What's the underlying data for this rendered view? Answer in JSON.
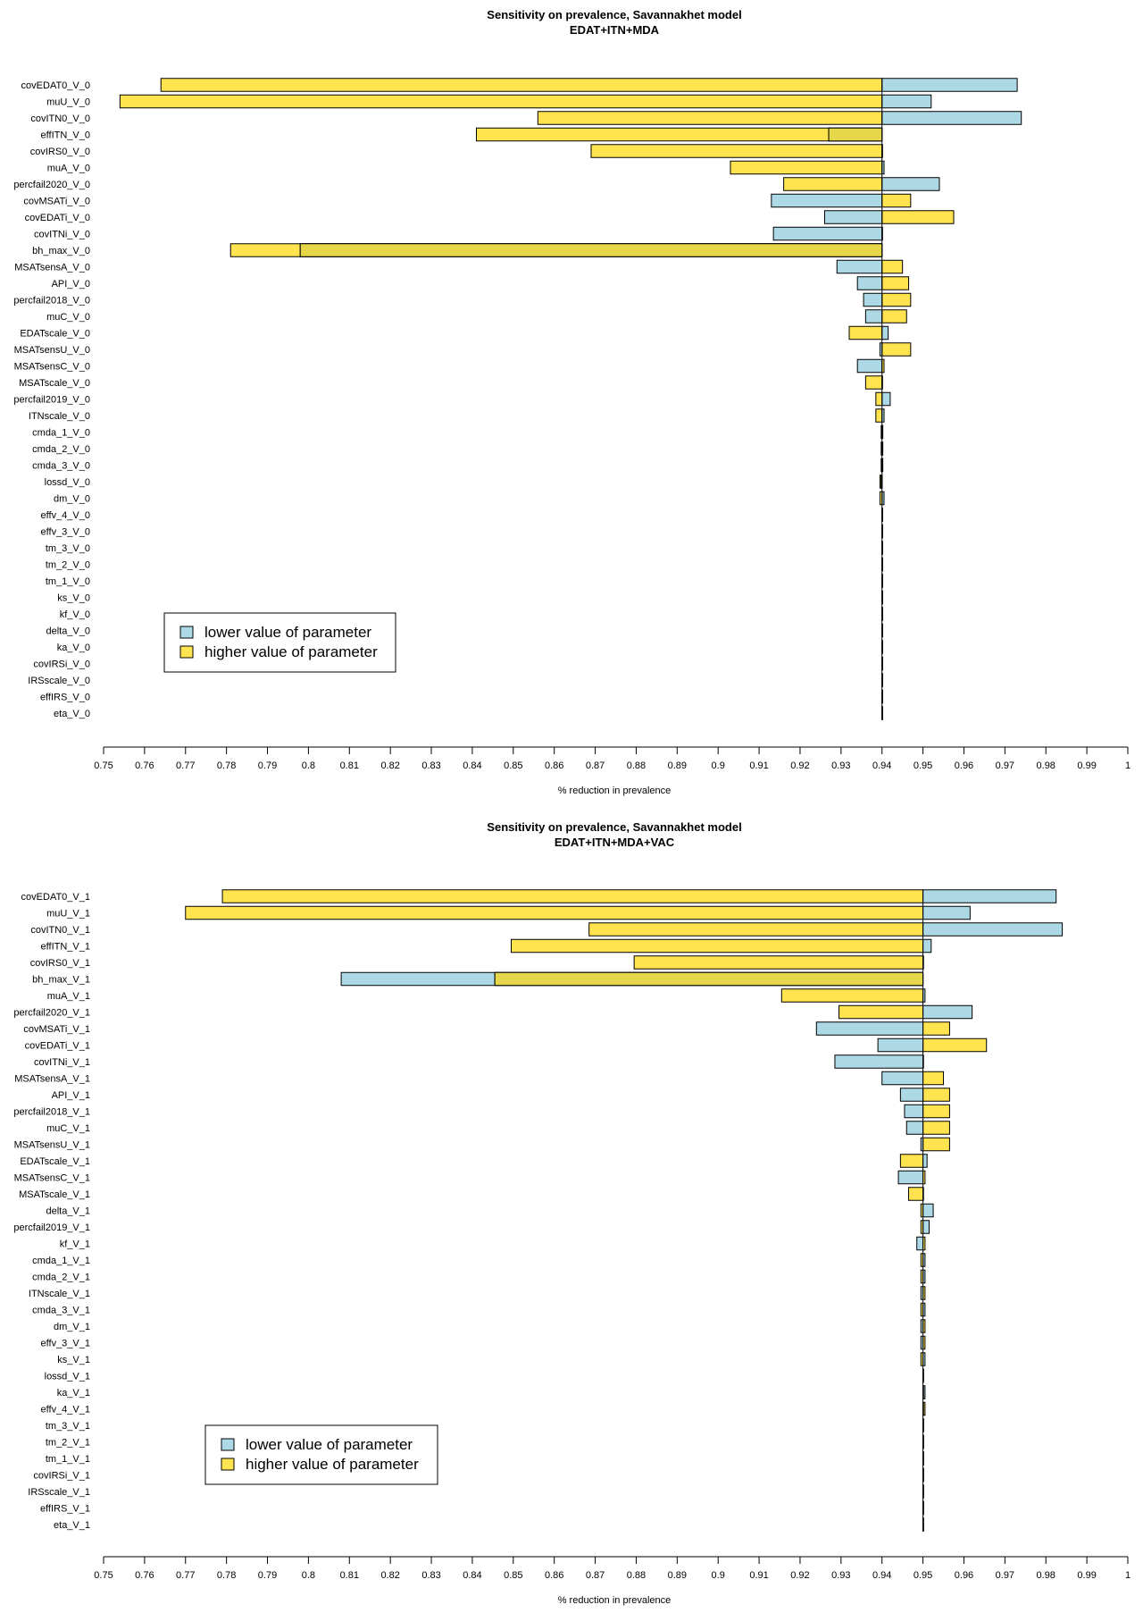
{
  "palette": {
    "lower": "#add8e6",
    "higher": "#ffe34f",
    "overlap": "#e5d64a",
    "stroke": "#000000"
  },
  "chart_data": [
    {
      "type": "bar",
      "orientation": "horizontal",
      "title": "Sensitivity on prevalence, Savannakhet model",
      "subtitle": "EDAT+ITN+MDA",
      "xlabel": "% reduction in prevalence",
      "xlim": [
        0.75,
        1.0
      ],
      "xticks": [
        0.75,
        0.76,
        0.77,
        0.78,
        0.79,
        0.8,
        0.81,
        0.82,
        0.83,
        0.84,
        0.85,
        0.86,
        0.87,
        0.88,
        0.89,
        0.9,
        0.91,
        0.92,
        0.93,
        0.94,
        0.95,
        0.96,
        0.97,
        0.98,
        0.99,
        1
      ],
      "xtick_labels": [
        "0.75",
        "0.76",
        "0.77",
        "0.78",
        "0.79",
        "0.8",
        "0.81",
        "0.82",
        "0.83",
        "0.84",
        "0.85",
        "0.86",
        "0.87",
        "0.88",
        "0.89",
        "0.9",
        "0.91",
        "0.92",
        "0.93",
        "0.94",
        "0.95",
        "0.96",
        "0.97",
        "0.98",
        "0.99",
        "1"
      ],
      "baseline": 0.94,
      "legend": {
        "position": "bottom-left",
        "entries": [
          "lower value of parameter",
          "higher value of parameter"
        ]
      },
      "series": [
        {
          "name": "lower value of parameter",
          "key": "lower"
        },
        {
          "name": "higher value of parameter",
          "key": "higher"
        }
      ],
      "categories": [
        "covEDAT0_V_0",
        "muU_V_0",
        "covITN0_V_0",
        "effITN_V_0",
        "covIRS0_V_0",
        "muA_V_0",
        "percfail2020_V_0",
        "covMSATi_V_0",
        "covEDATi_V_0",
        "covITNi_V_0",
        "bh_max_V_0",
        "MSATsensA_V_0",
        "API_V_0",
        "percfail2018_V_0",
        "muC_V_0",
        "EDATscale_V_0",
        "MSATsensU_V_0",
        "MSATsensC_V_0",
        "MSATscale_V_0",
        "percfail2019_V_0",
        "ITNscale_V_0",
        "cmda_1_V_0",
        "cmda_2_V_0",
        "cmda_3_V_0",
        "lossd_V_0",
        "dm_V_0",
        "effv_4_V_0",
        "effv_3_V_0",
        "tm_3_V_0",
        "tm_2_V_0",
        "tm_1_V_0",
        "ks_V_0",
        "kf_V_0",
        "delta_V_0",
        "ka_V_0",
        "covIRSi_V_0",
        "IRSscale_V_0",
        "effIRS_V_0",
        "eta_V_0"
      ],
      "lower": [
        0.973,
        0.952,
        0.974,
        0.927,
        0.94,
        0.9405,
        0.954,
        0.913,
        0.926,
        0.9135,
        0.798,
        0.929,
        0.934,
        0.9355,
        0.936,
        0.9415,
        0.9395,
        0.934,
        0.94,
        0.942,
        0.9405,
        0.9402,
        0.9402,
        0.9402,
        0.9398,
        0.9405,
        0.94,
        0.94,
        0.94,
        0.94,
        0.94,
        0.94,
        0.94,
        0.94,
        0.94,
        0.94,
        0.94,
        0.94,
        0.94
      ],
      "higher": [
        0.764,
        0.754,
        0.856,
        0.841,
        0.869,
        0.903,
        0.916,
        0.947,
        0.9575,
        0.94,
        0.781,
        0.945,
        0.9465,
        0.947,
        0.946,
        0.932,
        0.947,
        0.9405,
        0.936,
        0.9385,
        0.9385,
        0.9398,
        0.9398,
        0.9398,
        0.9395,
        0.9395,
        0.94,
        0.94,
        0.94,
        0.94,
        0.94,
        0.94,
        0.94,
        0.94,
        0.94,
        0.94,
        0.94,
        0.94,
        0.94
      ]
    },
    {
      "type": "bar",
      "orientation": "horizontal",
      "title": "Sensitivity on prevalence, Savannakhet model",
      "subtitle": "EDAT+ITN+MDA+VAC",
      "xlabel": "% reduction in prevalence",
      "xlim": [
        0.75,
        1.0
      ],
      "xticks": [
        0.75,
        0.76,
        0.77,
        0.78,
        0.79,
        0.8,
        0.81,
        0.82,
        0.83,
        0.84,
        0.85,
        0.86,
        0.87,
        0.88,
        0.89,
        0.9,
        0.91,
        0.92,
        0.93,
        0.94,
        0.95,
        0.96,
        0.97,
        0.98,
        0.99,
        1
      ],
      "xtick_labels": [
        "0.75",
        "0.76",
        "0.77",
        "0.78",
        "0.79",
        "0.8",
        "0.81",
        "0.82",
        "0.83",
        "0.84",
        "0.85",
        "0.86",
        "0.87",
        "0.88",
        "0.89",
        "0.9",
        "0.91",
        "0.92",
        "0.93",
        "0.94",
        "0.95",
        "0.96",
        "0.97",
        "0.98",
        "0.99",
        "1"
      ],
      "baseline": 0.95,
      "legend": {
        "position": "bottom-left",
        "entries": [
          "lower value of parameter",
          "higher value of parameter"
        ]
      },
      "series": [
        {
          "name": "lower value of parameter",
          "key": "lower"
        },
        {
          "name": "higher value of parameter",
          "key": "higher"
        }
      ],
      "categories": [
        "covEDAT0_V_1",
        "muU_V_1",
        "covITN0_V_1",
        "effITN_V_1",
        "covIRS0_V_1",
        "bh_max_V_1",
        "muA_V_1",
        "percfail2020_V_1",
        "covMSATi_V_1",
        "covEDATi_V_1",
        "covITNi_V_1",
        "MSATsensA_V_1",
        "API_V_1",
        "percfail2018_V_1",
        "muC_V_1",
        "MSATsensU_V_1",
        "EDATscale_V_1",
        "MSATsensC_V_1",
        "MSATscale_V_1",
        "delta_V_1",
        "percfail2019_V_1",
        "kf_V_1",
        "cmda_1_V_1",
        "cmda_2_V_1",
        "ITNscale_V_1",
        "cmda_3_V_1",
        "dm_V_1",
        "effv_3_V_1",
        "ks_V_1",
        "lossd_V_1",
        "ka_V_1",
        "effv_4_V_1",
        "tm_3_V_1",
        "tm_2_V_1",
        "tm_1_V_1",
        "covIRSi_V_1",
        "IRSscale_V_1",
        "effIRS_V_1",
        "eta_V_1"
      ],
      "lower": [
        0.9825,
        0.9615,
        0.984,
        0.952,
        0.95,
        0.808,
        0.9505,
        0.962,
        0.924,
        0.939,
        0.9285,
        0.94,
        0.9445,
        0.9455,
        0.946,
        0.9495,
        0.951,
        0.944,
        0.95,
        0.9525,
        0.9515,
        0.9485,
        0.9505,
        0.9505,
        0.9495,
        0.9505,
        0.9495,
        0.9495,
        0.9505,
        0.95,
        0.9505,
        0.95,
        0.95,
        0.95,
        0.95,
        0.95,
        0.95,
        0.95,
        0.95
      ],
      "higher": [
        0.779,
        0.77,
        0.8685,
        0.8495,
        0.8795,
        0.8455,
        0.9155,
        0.9295,
        0.9565,
        0.9655,
        0.95,
        0.955,
        0.9565,
        0.9565,
        0.9565,
        0.9565,
        0.9445,
        0.9505,
        0.9465,
        0.9495,
        0.9495,
        0.9505,
        0.9495,
        0.9495,
        0.9505,
        0.9495,
        0.9505,
        0.9505,
        0.9495,
        0.95,
        0.95,
        0.9505,
        0.95,
        0.95,
        0.95,
        0.95,
        0.95,
        0.95,
        0.95
      ]
    }
  ]
}
